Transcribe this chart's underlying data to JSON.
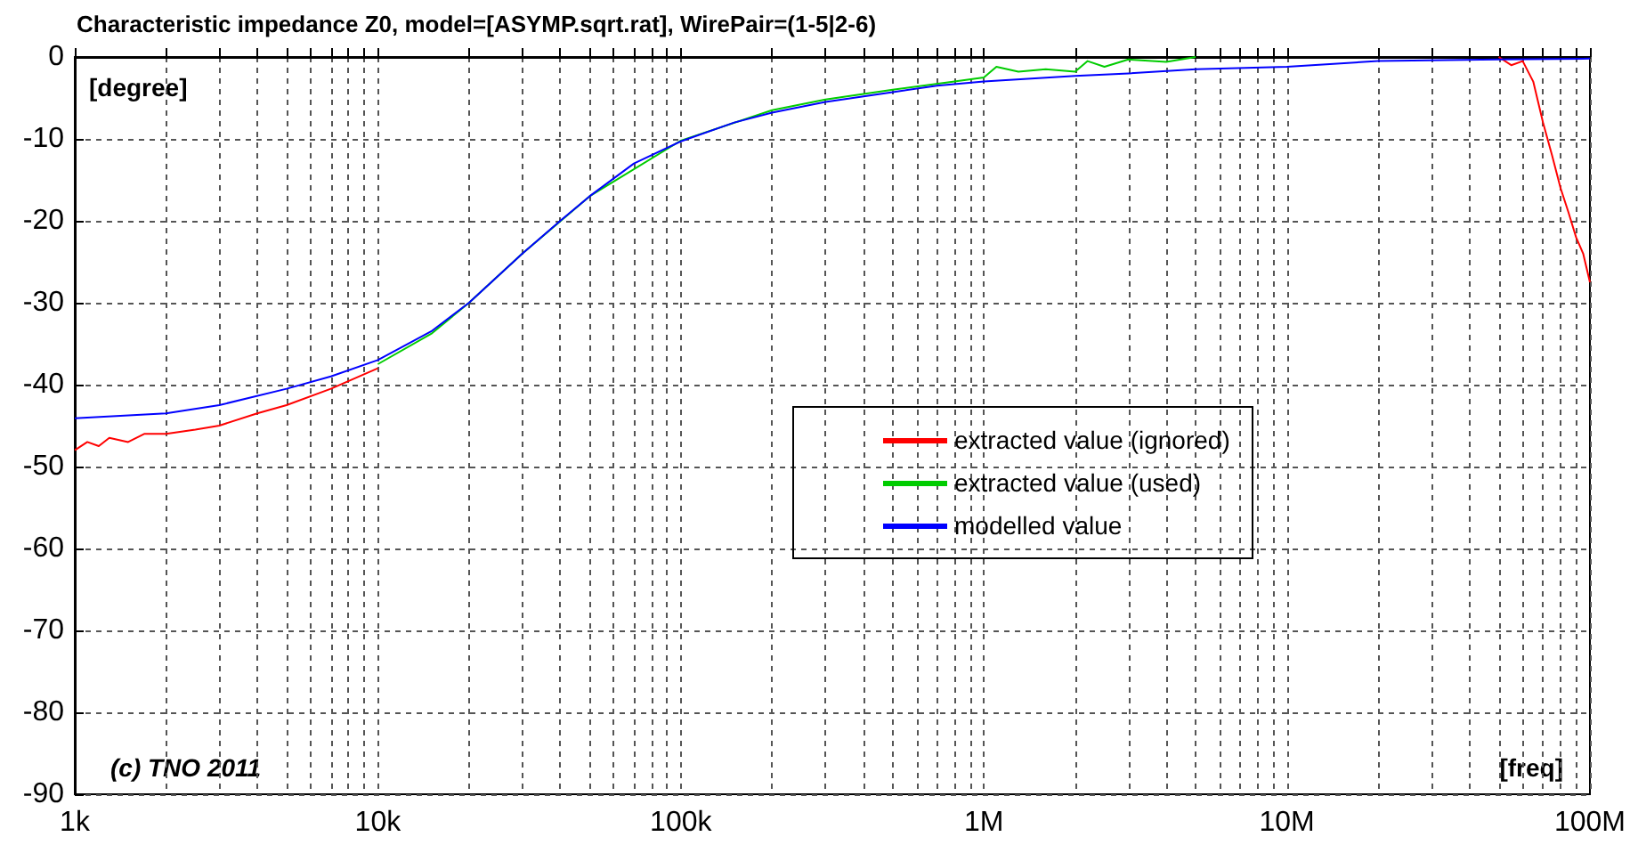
{
  "chart_data": {
    "type": "line",
    "title": "Characteristic impedance Z0, model=[ASYMP.sqrt.rat], WirePair=(1-5|2-6)",
    "xlabel": "[freq]",
    "ylabel": "[degree]",
    "annotations": [
      "(c) TNO 2011"
    ],
    "log": "x",
    "grid": true,
    "legend": "center right",
    "marker": "none",
    "line_style": "solid",
    "xlim": [
      1000,
      100000000
    ],
    "ylim": [
      -90,
      0
    ],
    "xticks": [
      {
        "value": 1000,
        "label": "1k"
      },
      {
        "value": 2000,
        "label": null
      },
      {
        "value": 3000,
        "label": null
      },
      {
        "value": 4000,
        "label": null
      },
      {
        "value": 5000,
        "label": null
      },
      {
        "value": 6000,
        "label": null
      },
      {
        "value": 7000,
        "label": null
      },
      {
        "value": 8000,
        "label": null
      },
      {
        "value": 9000,
        "label": null
      },
      {
        "value": 10000,
        "label": "10k"
      },
      {
        "value": 20000,
        "label": null
      },
      {
        "value": 30000,
        "label": null
      },
      {
        "value": 40000,
        "label": null
      },
      {
        "value": 50000,
        "label": null
      },
      {
        "value": 60000,
        "label": null
      },
      {
        "value": 70000,
        "label": null
      },
      {
        "value": 80000,
        "label": null
      },
      {
        "value": 90000,
        "label": null
      },
      {
        "value": 100000,
        "label": "100k"
      },
      {
        "value": 200000,
        "label": null
      },
      {
        "value": 300000,
        "label": null
      },
      {
        "value": 400000,
        "label": null
      },
      {
        "value": 500000,
        "label": null
      },
      {
        "value": 600000,
        "label": null
      },
      {
        "value": 700000,
        "label": null
      },
      {
        "value": 800000,
        "label": null
      },
      {
        "value": 900000,
        "label": null
      },
      {
        "value": 1000000,
        "label": "1M"
      },
      {
        "value": 2000000,
        "label": null
      },
      {
        "value": 3000000,
        "label": null
      },
      {
        "value": 4000000,
        "label": null
      },
      {
        "value": 5000000,
        "label": null
      },
      {
        "value": 6000000,
        "label": null
      },
      {
        "value": 7000000,
        "label": null
      },
      {
        "value": 8000000,
        "label": null
      },
      {
        "value": 9000000,
        "label": null
      },
      {
        "value": 10000000,
        "label": "10M"
      },
      {
        "value": 20000000,
        "label": null
      },
      {
        "value": 30000000,
        "label": null
      },
      {
        "value": 40000000,
        "label": null
      },
      {
        "value": 50000000,
        "label": null
      },
      {
        "value": 60000000,
        "label": null
      },
      {
        "value": 70000000,
        "label": null
      },
      {
        "value": 80000000,
        "label": null
      },
      {
        "value": 90000000,
        "label": null
      },
      {
        "value": 100000000,
        "label": "100M"
      }
    ],
    "yticks": [
      -90,
      -80,
      -70,
      -60,
      -50,
      -40,
      -30,
      -20,
      -10,
      0
    ],
    "series": [
      {
        "name": "extracted value (ignored)",
        "color": "#ff0000",
        "x": [
          1000,
          1100,
          1200,
          1300,
          1500,
          1700,
          2000,
          2500,
          3000,
          4000,
          5000,
          7000,
          10000,
          50000000,
          55000000,
          60000000,
          65000000,
          70000000,
          75000000,
          80000000,
          85000000,
          90000000,
          95000000,
          100000000
        ],
        "values": [
          -48,
          -47,
          -47.5,
          -46.5,
          -47,
          -46,
          -46,
          -45.5,
          -45,
          -43.5,
          -42.5,
          -40.5,
          -38,
          0,
          -1,
          -0.5,
          -3,
          -8,
          -12,
          -16,
          -19,
          -22,
          -24,
          -27.5
        ]
      },
      {
        "name": "extracted value (used)",
        "color": "#00cc00",
        "x": [
          10000,
          15000,
          20000,
          30000,
          50000,
          100000,
          200000,
          300000,
          500000,
          800000,
          1000000,
          1100000,
          1300000,
          1600000,
          2000000,
          2200000,
          2500000,
          3000000,
          4000000,
          5000000
        ],
        "values": [
          -37.5,
          -33.8,
          -30,
          -24,
          -17,
          -10.2,
          -6.5,
          -5.2,
          -4,
          -3,
          -2.5,
          -1.2,
          -1.8,
          -1.5,
          -1.8,
          -0.5,
          -1.2,
          -0.3,
          -0.6,
          0
        ]
      },
      {
        "name": "modelled value",
        "color": "#0000ff",
        "x": [
          1000,
          2000,
          3000,
          5000,
          7000,
          10000,
          15000,
          20000,
          30000,
          40000,
          50000,
          70000,
          100000,
          150000,
          200000,
          300000,
          500000,
          700000,
          1000000,
          2000000,
          3000000,
          5000000,
          10000000,
          20000000,
          50000000,
          100000000
        ],
        "values": [
          -44.1,
          -43.5,
          -42.5,
          -40.5,
          -39,
          -37,
          -33.5,
          -30,
          -24,
          -20,
          -17,
          -13,
          -10.3,
          -8,
          -6.8,
          -5.5,
          -4.3,
          -3.5,
          -3,
          -2.3,
          -2,
          -1.5,
          -1.2,
          -0.5,
          -0.3,
          -0.2
        ]
      }
    ]
  }
}
